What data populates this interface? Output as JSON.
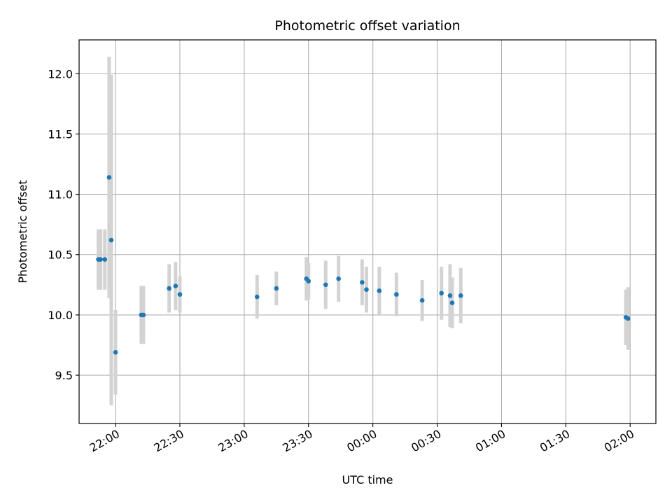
{
  "chart_data": {
    "type": "scatter",
    "title": "Photometric offset variation",
    "xlabel": "UTC time",
    "ylabel": "Photometric offset",
    "grid": true,
    "x_unit": "UTC time (HH:MM), minutes after 22:00 crossing midnight shown as next-day times",
    "xlim": [
      "21:43",
      "02:12"
    ],
    "ylim": [
      9.1,
      12.28
    ],
    "x_ticks": [
      "22:00",
      "22:30",
      "23:00",
      "23:30",
      "00:00",
      "00:30",
      "01:00",
      "01:30",
      "02:00"
    ],
    "y_ticks": [
      9.5,
      10.0,
      10.5,
      11.0,
      11.5,
      12.0
    ],
    "y_tick_labels": [
      "9.5",
      "10.0",
      "10.5",
      "11.0",
      "11.5",
      "12.0"
    ],
    "colors": {
      "marker": "#1f77b4",
      "errorbar": "#d3d3d3",
      "grid": "#b0b0b0"
    },
    "points": [
      {
        "x": "21:52",
        "y": 10.46,
        "err": 0.25
      },
      {
        "x": "21:53",
        "y": 10.46,
        "err": 0.25
      },
      {
        "x": "21:55",
        "y": 10.46,
        "err": 0.25
      },
      {
        "x": "21:57",
        "y": 11.14,
        "err": 1.0
      },
      {
        "x": "21:58",
        "y": 10.62,
        "err": 1.37
      },
      {
        "x": "22:00",
        "y": 9.69,
        "err": 0.35
      },
      {
        "x": "22:12",
        "y": 10.0,
        "err": 0.24
      },
      {
        "x": "22:13",
        "y": 10.0,
        "err": 0.24
      },
      {
        "x": "22:25",
        "y": 10.22,
        "err": 0.2
      },
      {
        "x": "22:28",
        "y": 10.24,
        "err": 0.2
      },
      {
        "x": "22:30",
        "y": 10.17,
        "err": 0.15
      },
      {
        "x": "23:06",
        "y": 10.15,
        "err": 0.18
      },
      {
        "x": "23:15",
        "y": 10.22,
        "err": 0.14
      },
      {
        "x": "23:29",
        "y": 10.3,
        "err": 0.18
      },
      {
        "x": "23:30",
        "y": 10.28,
        "err": 0.15
      },
      {
        "x": "23:38",
        "y": 10.25,
        "err": 0.2
      },
      {
        "x": "23:44",
        "y": 10.3,
        "err": 0.19
      },
      {
        "x": "23:55",
        "y": 10.27,
        "err": 0.19
      },
      {
        "x": "23:57",
        "y": 10.21,
        "err": 0.19
      },
      {
        "x": "00:03",
        "y": 10.2,
        "err": 0.2
      },
      {
        "x": "00:11",
        "y": 10.17,
        "err": 0.18
      },
      {
        "x": "00:23",
        "y": 10.12,
        "err": 0.17
      },
      {
        "x": "00:32",
        "y": 10.18,
        "err": 0.22
      },
      {
        "x": "00:36",
        "y": 10.16,
        "err": 0.26
      },
      {
        "x": "00:37",
        "y": 10.1,
        "err": 0.21
      },
      {
        "x": "00:41",
        "y": 10.16,
        "err": 0.23
      },
      {
        "x": "01:58",
        "y": 9.98,
        "err": 0.23
      },
      {
        "x": "01:59",
        "y": 9.97,
        "err": 0.26
      }
    ]
  }
}
